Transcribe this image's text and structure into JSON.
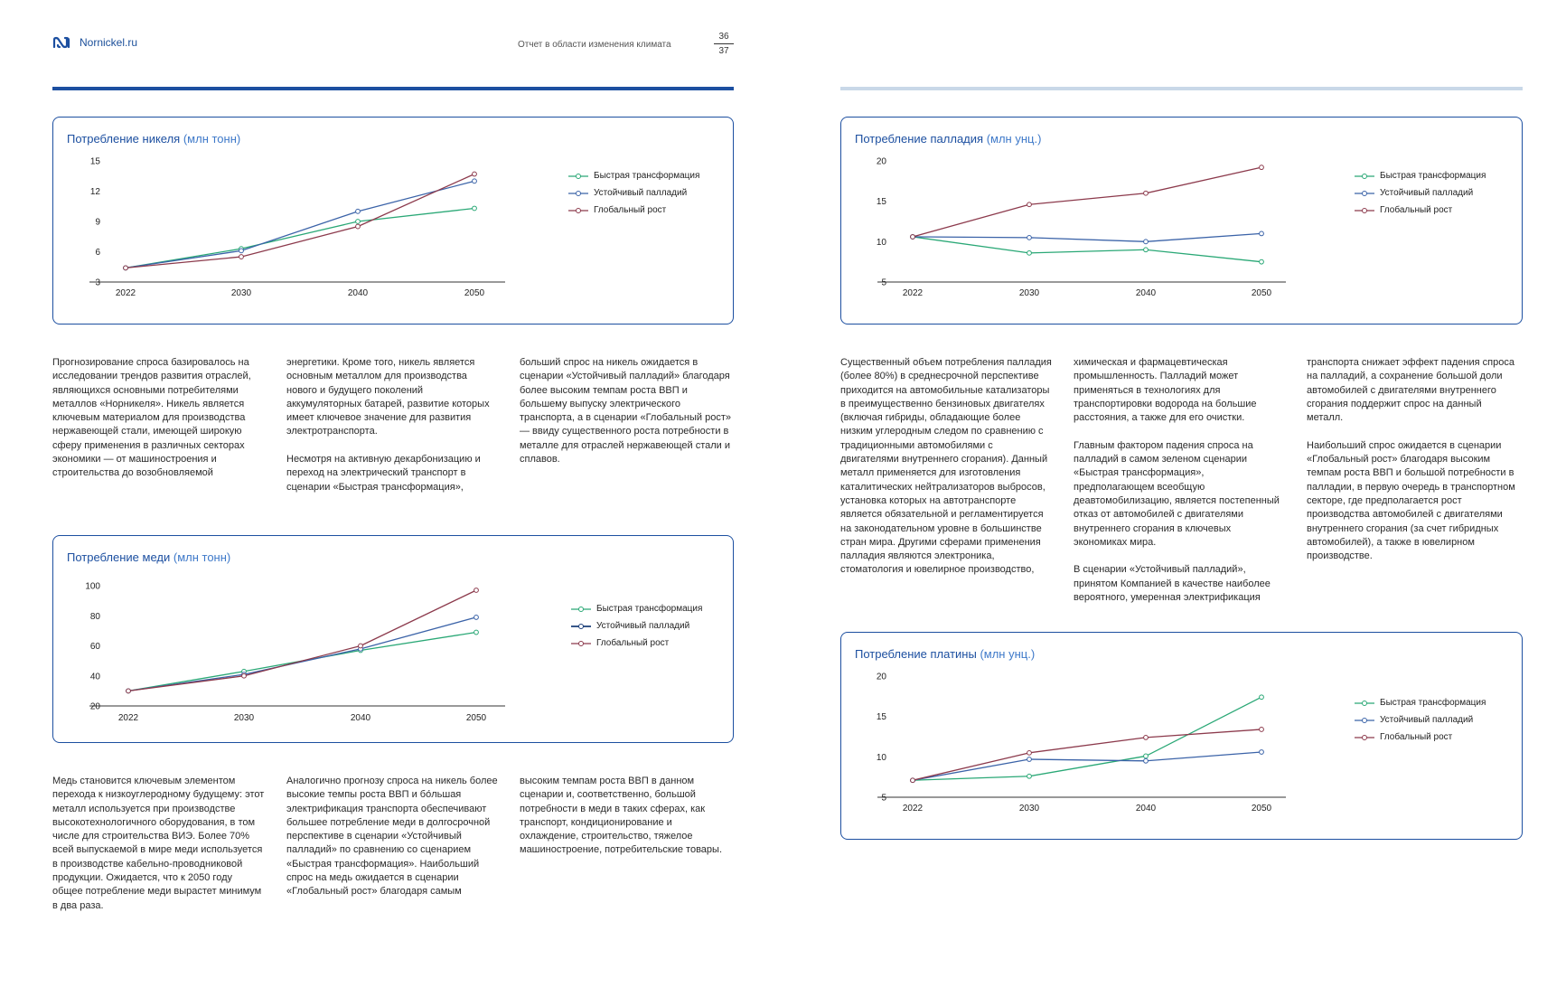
{
  "header": {
    "site": "Nornickel.ru",
    "report_title": "Отчет в области изменения климата",
    "page_top": "36",
    "page_bottom": "37"
  },
  "colors": {
    "fast": "#2aa876",
    "sustainable": "#3b63a8",
    "global": "#8c3a4c",
    "frame": "#1c4fa0"
  },
  "legend": {
    "fast": "Быстрая трансформация",
    "sustainable": "Устойчивый палладий",
    "global": "Глобальный рост"
  },
  "charts": {
    "nickel": {
      "title": "Потребление никеля",
      "unit": "(млн тонн)"
    },
    "copper": {
      "title": "Потребление меди",
      "unit": "(млн тонн)"
    },
    "palladium": {
      "title": "Потребление палладия",
      "unit": "(млн унц.)"
    },
    "platinum": {
      "title": "Потребление платины",
      "unit": "(млн унц.)"
    }
  },
  "chart_data": [
    {
      "id": "nickel",
      "type": "line",
      "title": "Потребление никеля (млн тонн)",
      "x": [
        "2022",
        "2030",
        "2040",
        "2050"
      ],
      "ylim": [
        3,
        15
      ],
      "yticks": [
        "3",
        "6",
        "9",
        "12",
        "15"
      ],
      "series": [
        {
          "key": "fast",
          "name": "Быстрая трансформация",
          "values": [
            4.4,
            6.3,
            9.0,
            10.3
          ]
        },
        {
          "key": "sustainable",
          "name": "Устойчивый палладий",
          "values": [
            4.4,
            6.1,
            10.0,
            13.0
          ]
        },
        {
          "key": "global",
          "name": "Глобальный рост",
          "values": [
            4.4,
            5.5,
            8.5,
            13.7
          ]
        }
      ],
      "legend_position": "right"
    },
    {
      "id": "copper",
      "type": "line",
      "title": "Потребление меди (млн тонн)",
      "x": [
        "2022",
        "2030",
        "2040",
        "2050"
      ],
      "ylim": [
        20,
        100
      ],
      "yticks": [
        "20",
        "40",
        "60",
        "80",
        "100"
      ],
      "series": [
        {
          "key": "fast",
          "name": "Быстрая трансформация",
          "values": [
            30,
            43,
            57,
            69
          ]
        },
        {
          "key": "sustainable",
          "name": "Устойчивый палладий",
          "values": [
            30,
            41,
            58,
            79
          ]
        },
        {
          "key": "global",
          "name": "Глобальный рост",
          "values": [
            30,
            40,
            60,
            97
          ]
        }
      ],
      "legend_position": "right"
    },
    {
      "id": "palladium",
      "type": "line",
      "title": "Потребление палладия (млн унц.)",
      "x": [
        "2022",
        "2030",
        "2040",
        "2050"
      ],
      "ylim": [
        5,
        20
      ],
      "yticks": [
        "5",
        "10",
        "15",
        "20"
      ],
      "series": [
        {
          "key": "fast",
          "name": "Быстрая трансформация",
          "values": [
            10.6,
            8.6,
            9.0,
            7.5
          ]
        },
        {
          "key": "sustainable",
          "name": "Устойчивый палладий",
          "values": [
            10.6,
            10.5,
            10.0,
            11.0
          ]
        },
        {
          "key": "global",
          "name": "Глобальный рост",
          "values": [
            10.6,
            14.6,
            16.0,
            19.2
          ]
        }
      ],
      "legend_position": "right"
    },
    {
      "id": "platinum",
      "type": "line",
      "title": "Потребление платины (млн унц.)",
      "x": [
        "2022",
        "2030",
        "2040",
        "2050"
      ],
      "ylim": [
        5,
        20
      ],
      "yticks": [
        "5",
        "10",
        "15",
        "20"
      ],
      "series": [
        {
          "key": "fast",
          "name": "Быстрая трансформация",
          "values": [
            7.1,
            7.6,
            10.1,
            17.4
          ]
        },
        {
          "key": "sustainable",
          "name": "Устойчивый палладий",
          "values": [
            7.1,
            9.7,
            9.5,
            10.6
          ]
        },
        {
          "key": "global",
          "name": "Глобальный рост",
          "values": [
            7.1,
            10.5,
            12.4,
            13.4
          ]
        }
      ],
      "legend_position": "right"
    }
  ],
  "text": {
    "nickel_col1": "Прогнозирование спроса базировалось на исследовании трендов развития отраслей, являющихся основными потребителями металлов «Норникеля». Никель является ключевым материалом для производства нержавеющей стали, имеющей широкую сферу применения в различных секторах экономики — от машиностроения и строительства до возобновляемой",
    "nickel_col2a": "энергетики. Кроме того, никель является основным металлом для производства нового и будущего поколений аккумуляторных батарей, развитие которых имеет ключевое значение для развития электротранспорта.",
    "nickel_col2b": "Несмотря на активную декарбонизацию и переход на электрический транспорт в сценарии «Быстрая трансформация»,",
    "nickel_col3": "больший спрос на никель ожидается в сценарии «Устойчивый палладий» благодаря более высоким темпам роста ВВП и большему выпуску электрического транспорта, а в сценарии «Глобальный рост» — ввиду существенного роста потребности в металле для отраслей нержавеющей стали и сплавов.",
    "copper_col1": "Медь становится ключевым элементом перехода к низкоуглеродному будущему: этот металл используется при производстве высокотехнологичного оборудования, в том числе для строительства ВИЭ. Более 70% всей выпускаемой в мире меди используется в производстве кабельно-проводниковой продукции. Ожидается, что к 2050 году общее потребление меди вырастет минимум в два раза.",
    "copper_col2": "Аналогично прогнозу спроса на никель более высокие темпы роста ВВП и бо́льшая электрификация транспорта обеспечивают большее потребление меди в долгосрочной перспективе в сценарии «Устойчивый палладий» по сравнению со сценарием «Быстрая трансформация». Наибольший спрос на медь ожидается в сценарии «Глобальный рост» благодаря самым",
    "copper_col3": "высоким темпам роста ВВП в данном сценарии и, соответственно, большой потребности в меди в таких сферах, как транспорт, кондиционирование и охлаждение, строительство, тяжелое машиностроение, потребительские товары.",
    "pd_col1": "Существенный объем потребления палладия (более 80%) в среднесрочной перспективе приходится на автомобильные катализаторы в преимущественно бензиновых двигателях (включая гибриды, обладающие более низким углеродным следом по сравнению с традиционными автомобилями с двигателями внутреннего сгорания). Данный металл применяется для изготовления каталитических нейтрализаторов выбросов, установка которых на автотранспорте является обязательной и регламентируется на законодательном уровне в большинстве стран мира. Другими сферами применения палладия являются электроника, стоматология и ювелирное производство,",
    "pd_col2a": "химическая и фармацевтическая промышленность. Палладий может применяться в технологиях для транспортировки водорода на большие расстояния, а также для его очистки.",
    "pd_col2b": "Главным фактором падения спроса на палладий в самом зеленом сценарии «Быстрая трансформация», предполагающем всеобщую деавтомобилизацию, является постепенный отказ от автомобилей с двигателями внутреннего сгорания в ключевых экономиках мира.",
    "pd_col2c": "В сценарии «Устойчивый палладий», принятом Компанией в качестве наиболее вероятного, умеренная электрификация",
    "pd_col3a": "транспорта снижает эффект падения спроса на палладий, а сохранение большой доли автомобилей с двигателями внутреннего сгорания поддержит спрос на данный металл.",
    "pd_col3b": "Наибольший спрос ожидается в сценарии «Глобальный рост» благодаря высоким темпам роста ВВП и большой потребности в палладии, в первую очередь в транспортном секторе, где предполагается рост производства автомобилей с двигателями внутреннего сгорания (за счет гибридных автомобилей), а также в ювелирном производстве."
  }
}
